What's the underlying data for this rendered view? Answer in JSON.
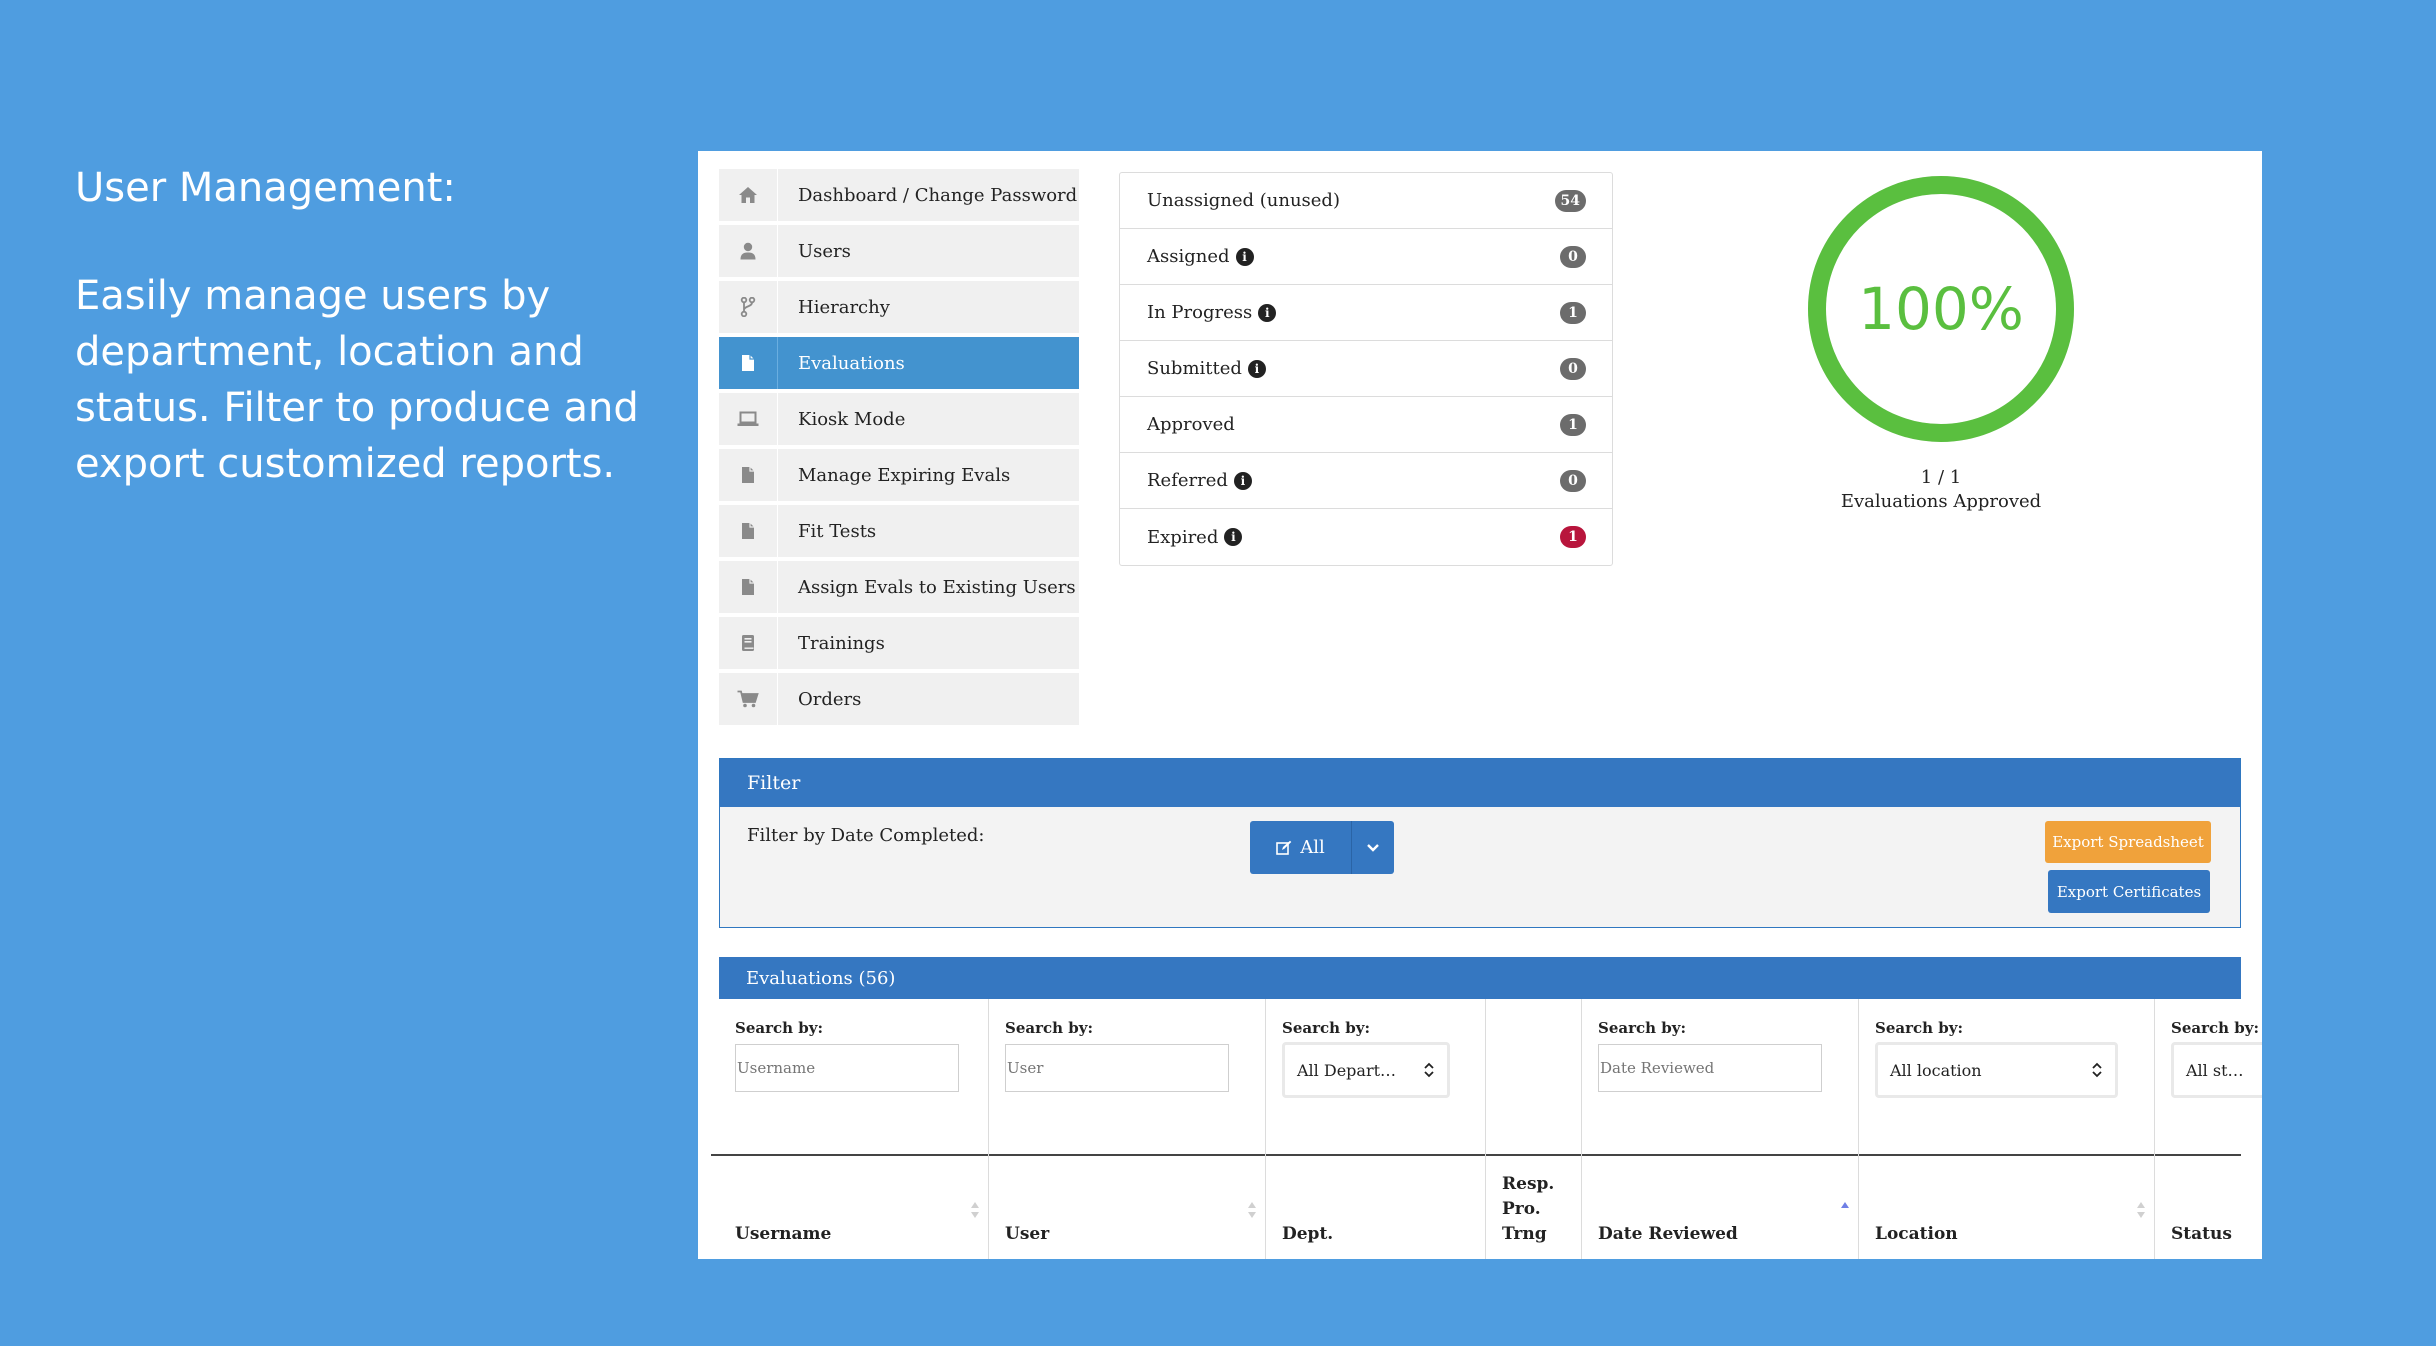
{
  "caption": {
    "heading": "User Management:",
    "body": "Easily manage users by department, location and status. Filter to produce and export customized reports."
  },
  "sidebar": {
    "items": [
      {
        "label": "Dashboard / Change Password",
        "icon": "home-icon",
        "active": false
      },
      {
        "label": "Users",
        "icon": "user-icon",
        "active": false
      },
      {
        "label": "Hierarchy",
        "icon": "branch-icon",
        "active": false
      },
      {
        "label": "Evaluations",
        "icon": "document-icon",
        "active": true
      },
      {
        "label": "Kiosk Mode",
        "icon": "laptop-icon",
        "active": false
      },
      {
        "label": "Manage Expiring Evals",
        "icon": "document-icon",
        "active": false
      },
      {
        "label": "Fit Tests",
        "icon": "document-icon",
        "active": false
      },
      {
        "label": "Assign Evals to Existing Users",
        "icon": "document-icon",
        "active": false
      },
      {
        "label": "Trainings",
        "icon": "book-icon",
        "active": false
      },
      {
        "label": "Orders",
        "icon": "cart-icon",
        "active": false
      }
    ]
  },
  "status_list": [
    {
      "label": "Unassigned (unused)",
      "count": "54",
      "info": false,
      "color": "#6c6c6c"
    },
    {
      "label": "Assigned",
      "count": "0",
      "info": true,
      "color": "#6c6c6c"
    },
    {
      "label": "In Progress",
      "count": "1",
      "info": true,
      "color": "#6c6c6c"
    },
    {
      "label": "Submitted",
      "count": "0",
      "info": true,
      "color": "#6c6c6c"
    },
    {
      "label": "Approved",
      "count": "1",
      "info": false,
      "color": "#6c6c6c"
    },
    {
      "label": "Referred",
      "count": "0",
      "info": true,
      "color": "#6c6c6c"
    },
    {
      "label": "Expired",
      "count": "1",
      "info": true,
      "color": "#b8153c"
    }
  ],
  "donut": {
    "percent_label": "100%",
    "fraction": 1.0,
    "ratio": "1 / 1",
    "caption": "Evaluations Approved",
    "color": "#5abf3f"
  },
  "filter": {
    "title": "Filter",
    "date_label": "Filter by Date Completed:",
    "date_value": "All",
    "export_spreadsheet": "Export Spreadsheet",
    "export_certificates": "Export Certificates"
  },
  "evaluations": {
    "title": "Evaluations (56)",
    "search_label": "Search by:",
    "columns": [
      {
        "header": "Username",
        "type": "input",
        "placeholder": "Username"
      },
      {
        "header": "User",
        "type": "input",
        "placeholder": "User"
      },
      {
        "header": "Dept.",
        "type": "select",
        "value": "All Depart…"
      },
      {
        "header": "Resp. Pro. Trng",
        "type": "none"
      },
      {
        "header": "Date Reviewed",
        "type": "input",
        "placeholder": "Date Reviewed"
      },
      {
        "header": "Location",
        "type": "select",
        "value": "All location"
      },
      {
        "header": "Status",
        "type": "select",
        "value": "All st…"
      }
    ]
  }
}
